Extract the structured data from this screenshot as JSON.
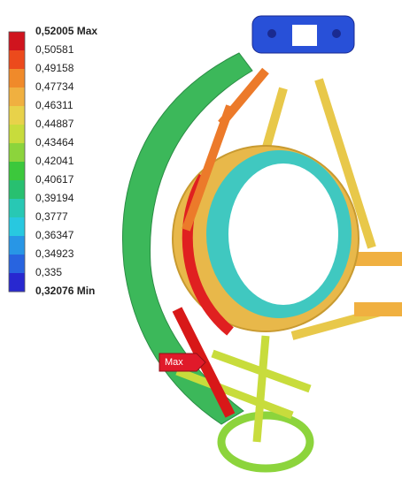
{
  "legend": {
    "labels": [
      "0,52005 Max",
      "0,50581",
      "0,49158",
      "0,47734",
      "0,46311",
      "0,44887",
      "0,43464",
      "0,42041",
      "0,40617",
      "0,39194",
      "0,3777",
      "0,36347",
      "0,34923",
      "0,335",
      "0,32076 Min"
    ],
    "colors": [
      "#d0141e",
      "#ec4a1c",
      "#f08a2a",
      "#f0b040",
      "#e8d24a",
      "#c8dc3c",
      "#8cd43c",
      "#3cc83c",
      "#28c070",
      "#28c8b4",
      "#28c8e0",
      "#2896e6",
      "#2864e0",
      "#2828d0"
    ]
  },
  "probe": {
    "label": "Max"
  }
}
